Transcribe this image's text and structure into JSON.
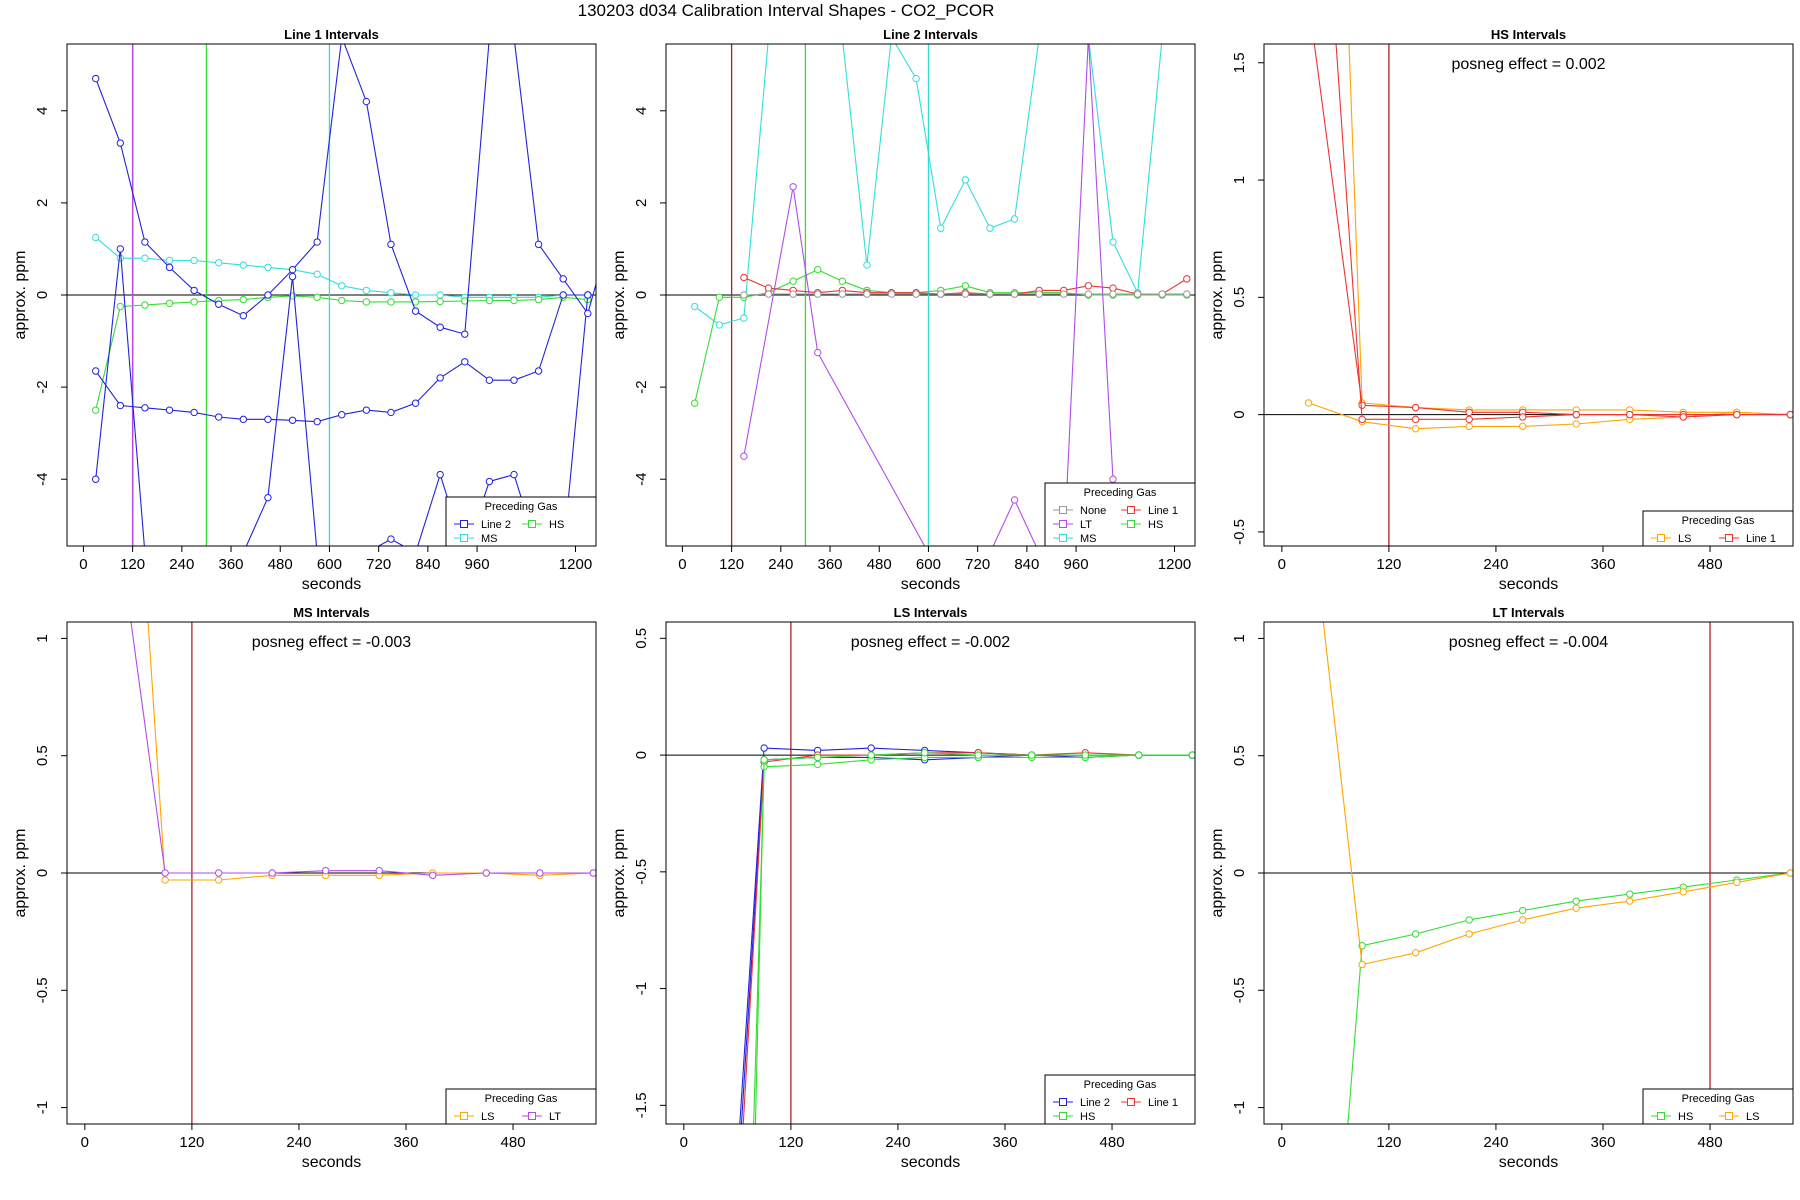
{
  "supertitle": "130203  d034   Calibration Interval Shapes - CO2_PCOR",
  "colors": {
    "Line 2": "#2222dd",
    "Line 1": "#ee3333",
    "HS": "#33dd33",
    "MS": "#33dddd",
    "LS": "#ffa500",
    "LT": "#b24be8",
    "None": "#999999",
    "zero": "#000000",
    "marker": "#b22222"
  },
  "chart_data": [
    {
      "type": "line",
      "title": "Line 1 Intervals",
      "xlabel": "seconds",
      "ylabel": "approx. ppm",
      "xlim": [
        -40,
        1250
      ],
      "ylim": [
        -5.45,
        5.45
      ],
      "xticks": [
        0,
        120,
        240,
        360,
        480,
        600,
        720,
        840,
        960,
        1200
      ],
      "yticks": [
        -4,
        -2,
        0,
        2,
        4
      ],
      "vlines": [
        {
          "x": 120,
          "color": "Line 2"
        },
        {
          "x": 120,
          "color": "LT"
        },
        {
          "x": 300,
          "color": "HS"
        },
        {
          "x": 600,
          "color": "MS"
        }
      ],
      "legend": {
        "title": "Preceding Gas",
        "position": "bottom-right",
        "entries": [
          "Line 2",
          "HS",
          "MS"
        ]
      },
      "annotation": "",
      "series": [
        {
          "name": "MS",
          "color": "MS",
          "x": [
            30,
            90,
            150,
            210,
            270,
            330,
            390,
            450,
            510,
            570,
            630,
            690,
            750,
            810,
            870,
            930,
            990,
            1050,
            1110,
            1170,
            1230
          ],
          "y": [
            1.25,
            0.8,
            0.8,
            0.75,
            0.75,
            0.7,
            0.65,
            0.6,
            0.55,
            0.45,
            0.2,
            0.1,
            0.05,
            0.0,
            0.0,
            -0.05,
            -0.05,
            -0.05,
            -0.05,
            0.0,
            0.0
          ]
        },
        {
          "name": "HS",
          "color": "HS",
          "x": [
            30,
            90,
            150,
            210,
            270,
            330,
            390,
            450,
            510,
            570,
            630,
            690,
            750,
            810,
            870,
            930,
            990,
            1050,
            1110,
            1170,
            1230
          ],
          "y": [
            -2.5,
            -0.25,
            -0.22,
            -0.18,
            -0.15,
            -0.12,
            -0.1,
            -0.05,
            -0.02,
            -0.05,
            -0.12,
            -0.15,
            -0.15,
            -0.15,
            -0.14,
            -0.13,
            -0.12,
            -0.12,
            -0.1,
            -0.05,
            -0.1
          ]
        },
        {
          "name": "Line 2",
          "color": "Line 2",
          "x": [
            30,
            90,
            150,
            210,
            270,
            330,
            390,
            450,
            510,
            570,
            630,
            690,
            750,
            810,
            870,
            930,
            990,
            1050,
            1110,
            1170,
            1230
          ],
          "y": [
            -4.0,
            1.0,
            -5.6,
            -5.6,
            -5.6,
            -5.6,
            -5.6,
            -4.4,
            0.4,
            -5.6,
            -5.6,
            -5.6,
            -5.3,
            -5.6,
            -3.9,
            -5.6,
            -4.05,
            -3.9,
            -5.6,
            -5.6,
            0.0
          ]
        },
        {
          "name": "Line 2",
          "color": "Line 2",
          "x": [
            30,
            90,
            150,
            210,
            270,
            330,
            390,
            450,
            510,
            570,
            630,
            690,
            750,
            810,
            870,
            930,
            990,
            1050,
            1110,
            1170,
            1230
          ],
          "y": [
            -1.65,
            -2.4,
            -2.45,
            -2.5,
            -2.55,
            -2.65,
            -2.7,
            -2.7,
            -2.72,
            -2.75,
            -2.6,
            -2.5,
            -2.55,
            -2.35,
            -1.8,
            -1.45,
            -1.85,
            -1.85,
            -1.65,
            0.0,
            0.0
          ]
        },
        {
          "name": "Line 2",
          "color": "Line 2",
          "x": [
            30,
            90,
            150,
            210,
            270,
            330,
            390,
            450,
            510,
            570,
            630,
            690,
            750,
            810,
            870,
            930,
            990,
            1050,
            1110,
            1170,
            1230,
            1260
          ],
          "y": [
            4.7,
            3.3,
            1.15,
            0.6,
            0.1,
            -0.2,
            -0.45,
            0.0,
            0.55,
            1.15,
            5.6,
            4.2,
            1.1,
            -0.35,
            -0.7,
            -0.85,
            5.6,
            5.6,
            1.1,
            0.35,
            -0.4,
            0.55
          ]
        }
      ]
    },
    {
      "type": "line",
      "title": "Line 2 Intervals",
      "xlabel": "seconds",
      "ylabel": "approx. ppm",
      "xlim": [
        -40,
        1250
      ],
      "ylim": [
        -5.45,
        5.45
      ],
      "xticks": [
        0,
        120,
        240,
        360,
        480,
        600,
        720,
        840,
        960,
        1200
      ],
      "yticks": [
        -4,
        -2,
        0,
        2,
        4
      ],
      "vlines": [
        {
          "x": 120,
          "color": "marker"
        },
        {
          "x": 300,
          "color": "HS"
        },
        {
          "x": 600,
          "color": "MS"
        }
      ],
      "legend": {
        "title": "Preceding Gas",
        "position": "bottom-right",
        "entries": [
          "None",
          "Line 1",
          "LT",
          "HS",
          "MS"
        ]
      },
      "annotation": "",
      "series": [
        {
          "name": "MS",
          "color": "MS",
          "x": [
            30,
            90,
            150,
            210,
            270,
            330,
            390,
            450,
            510,
            570,
            630,
            690,
            750,
            810,
            870,
            930,
            990,
            1050,
            1110,
            1170,
            1230
          ],
          "y": [
            -0.25,
            -0.65,
            -0.5,
            5.6,
            5.6,
            5.6,
            5.6,
            0.65,
            5.6,
            4.7,
            1.45,
            2.5,
            1.45,
            1.65,
            5.6,
            5.6,
            5.6,
            1.15,
            0.05,
            5.6,
            5.6
          ]
        },
        {
          "name": "HS",
          "color": "HS",
          "x": [
            30,
            90,
            150,
            210,
            270,
            330,
            390,
            450,
            510,
            570,
            630,
            690,
            750,
            810,
            870,
            930,
            990,
            1050,
            1110,
            1170,
            1230
          ],
          "y": [
            -2.35,
            -0.05,
            -0.05,
            0.05,
            0.3,
            0.55,
            0.3,
            0.1,
            0.05,
            0.05,
            0.1,
            0.2,
            0.05,
            0.05,
            0.05,
            0.05,
            0.0,
            0.0,
            0.0,
            0.0,
            0.0
          ]
        },
        {
          "name": "Line 1",
          "color": "Line 1",
          "x": [
            150,
            210,
            270,
            330,
            390,
            450,
            510,
            570,
            630,
            690,
            750,
            810,
            870,
            930,
            990,
            1050,
            1110,
            1170,
            1230
          ],
          "y": [
            0.38,
            0.15,
            0.1,
            0.05,
            0.1,
            0.05,
            0.05,
            0.05,
            0.02,
            0.05,
            0.02,
            0.02,
            0.1,
            0.1,
            0.2,
            0.15,
            0.02,
            0.02,
            0.35
          ]
        },
        {
          "name": "LT",
          "color": "LT",
          "x": [
            150,
            270,
            330,
            600,
            630,
            690,
            750,
            810,
            870,
            930,
            990,
            1050,
            1110
          ],
          "y": [
            -3.5,
            2.35,
            -1.25,
            -5.6,
            -5.6,
            -5.6,
            -5.6,
            -4.45,
            -5.6,
            -5.6,
            5.6,
            -4.0,
            -5.6
          ]
        },
        {
          "name": "None",
          "color": "None",
          "x": [
            150,
            210,
            270,
            330,
            390,
            450,
            510,
            570,
            630,
            690,
            750,
            810,
            870,
            930,
            990,
            1050,
            1110,
            1170,
            1230
          ],
          "y": [
            0.0,
            0.02,
            0.02,
            0.02,
            0.02,
            0.02,
            0.02,
            0.02,
            0.02,
            0.02,
            0.02,
            0.02,
            0.02,
            0.02,
            0.02,
            0.02,
            0.02,
            0.02,
            0.02
          ]
        }
      ]
    },
    {
      "type": "line",
      "title": "HS Intervals",
      "xlabel": "seconds",
      "ylabel": "approx. ppm",
      "xlim": [
        -20,
        573
      ],
      "ylim": [
        -0.56,
        1.58
      ],
      "xticks": [
        0,
        120,
        240,
        360,
        480
      ],
      "yticks": [
        -0.5,
        0.0,
        0.5,
        1.0,
        1.5
      ],
      "vlines": [
        {
          "x": 120,
          "color": "marker"
        }
      ],
      "legend": {
        "title": "Preceding Gas",
        "position": "bottom-right",
        "entries": [
          "LS",
          "Line 1"
        ]
      },
      "annotation": "posneg effect = 0.002",
      "series": [
        {
          "name": "LS",
          "color": "LS",
          "x": [
            30,
            90,
            150,
            210,
            270,
            330,
            390,
            450,
            510,
            570
          ],
          "y": [
            0.05,
            -0.03,
            -0.06,
            -0.05,
            -0.05,
            -0.04,
            -0.02,
            -0.01,
            0.01,
            0.0
          ]
        },
        {
          "name": "LS",
          "color": "LS",
          "x": [
            75,
            90,
            150,
            210,
            270,
            330,
            390,
            450,
            510,
            570
          ],
          "y": [
            1.62,
            0.05,
            0.03,
            0.02,
            0.02,
            0.02,
            0.02,
            0.01,
            0.01,
            0.0
          ]
        },
        {
          "name": "Line 1",
          "color": "Line 1",
          "x": [
            35,
            90,
            150,
            210,
            270,
            330,
            390,
            450,
            510,
            570
          ],
          "y": [
            1.62,
            0.04,
            0.03,
            0.01,
            0.01,
            0.0,
            0.0,
            0.0,
            0.0,
            0.0
          ]
        },
        {
          "name": "Line 1",
          "color": "Line 1",
          "x": [
            60,
            90,
            150,
            210,
            270,
            330,
            390,
            450,
            510,
            570
          ],
          "y": [
            1.62,
            -0.02,
            -0.02,
            -0.02,
            -0.01,
            0.0,
            0.0,
            -0.01,
            0.0,
            0.0
          ]
        }
      ]
    },
    {
      "type": "line",
      "title": "MS Intervals",
      "xlabel": "seconds",
      "ylabel": "approx. ppm",
      "xlim": [
        -20,
        573
      ],
      "ylim": [
        -1.07,
        1.07
      ],
      "xticks": [
        0,
        120,
        240,
        360,
        480
      ],
      "yticks": [
        -1.0,
        -0.5,
        0.0,
        0.5,
        1.0
      ],
      "vlines": [
        {
          "x": 120,
          "color": "marker"
        }
      ],
      "legend": {
        "title": "Preceding Gas",
        "position": "bottom-right",
        "entries": [
          "LS",
          "LT"
        ]
      },
      "annotation": "posneg effect = -0.003",
      "series": [
        {
          "name": "LS",
          "color": "LS",
          "x": [
            70,
            90,
            150,
            210,
            270,
            330,
            390,
            450,
            510,
            570
          ],
          "y": [
            1.12,
            -0.03,
            -0.03,
            -0.01,
            -0.01,
            -0.01,
            0.0,
            0.0,
            -0.01,
            0.0
          ]
        },
        {
          "name": "LT",
          "color": "LT",
          "x": [
            50,
            90,
            150,
            210,
            270,
            330,
            390,
            450,
            510,
            570
          ],
          "y": [
            1.12,
            0.0,
            0.0,
            0.0,
            0.01,
            0.01,
            -0.01,
            0.0,
            0.0,
            0.0
          ]
        }
      ]
    },
    {
      "type": "line",
      "title": "LS Intervals",
      "xlabel": "seconds",
      "ylabel": "approx. ppm",
      "xlim": [
        -20,
        573
      ],
      "ylim": [
        -1.58,
        0.57
      ],
      "xticks": [
        0,
        120,
        240,
        360,
        480
      ],
      "yticks": [
        -1.5,
        -1.0,
        -0.5,
        0.0,
        0.5
      ],
      "vlines": [
        {
          "x": 120,
          "color": "marker"
        }
      ],
      "legend": {
        "title": "Preceding Gas",
        "position": "bottom-right",
        "entries": [
          "Line 2",
          "Line 1",
          "HS"
        ]
      },
      "annotation": "posneg effect = -0.002",
      "series": [
        {
          "name": "Line 2",
          "color": "Line 2",
          "x": [
            62,
            90,
            150,
            210,
            270,
            330,
            390,
            450,
            510,
            570
          ],
          "y": [
            -1.62,
            0.03,
            0.02,
            0.03,
            0.02,
            0.01,
            0.0,
            0.0,
            0.0,
            0.0
          ]
        },
        {
          "name": "Line 2",
          "color": "Line 2",
          "x": [
            64,
            90,
            150,
            210,
            270,
            330,
            390,
            450,
            510,
            570
          ],
          "y": [
            -1.62,
            -0.02,
            -0.01,
            -0.01,
            -0.02,
            -0.01,
            0.0,
            -0.01,
            0.0,
            0.0
          ]
        },
        {
          "name": "Line 1",
          "color": "Line 1",
          "x": [
            66,
            90,
            150,
            210,
            270,
            330,
            390,
            450,
            510,
            570
          ],
          "y": [
            -1.62,
            -0.03,
            0.0,
            0.0,
            0.01,
            0.01,
            0.0,
            0.01,
            0.0,
            0.0
          ]
        },
        {
          "name": "HS",
          "color": "HS",
          "x": [
            78,
            90,
            150,
            210,
            270,
            330,
            390,
            450,
            510,
            570
          ],
          "y": [
            -1.62,
            -0.05,
            -0.04,
            -0.02,
            -0.01,
            -0.01,
            -0.01,
            -0.01,
            0.0,
            0.0
          ]
        },
        {
          "name": "HS",
          "color": "HS",
          "x": [
            80,
            90,
            150,
            210,
            270,
            330,
            390,
            450,
            510,
            570
          ],
          "y": [
            -1.62,
            -0.02,
            -0.01,
            0.0,
            0.01,
            0.0,
            0.0,
            0.0,
            0.0,
            0.0
          ]
        }
      ]
    },
    {
      "type": "line",
      "title": "LT Intervals",
      "xlabel": "seconds",
      "ylabel": "approx. ppm",
      "xlim": [
        -20,
        573
      ],
      "ylim": [
        -1.07,
        1.07
      ],
      "xticks": [
        0,
        120,
        240,
        360,
        480
      ],
      "yticks": [
        -1.0,
        -0.5,
        0.0,
        0.5,
        1.0
      ],
      "vlines": [
        {
          "x": 480,
          "color": "marker"
        }
      ],
      "legend": {
        "title": "Preceding Gas",
        "position": "bottom-right",
        "entries": [
          "HS",
          "LS"
        ]
      },
      "annotation": "posneg effect = -0.004",
      "series": [
        {
          "name": "HS",
          "color": "HS",
          "x": [
            73,
            90,
            150,
            210,
            270,
            330,
            390,
            450,
            510,
            570
          ],
          "y": [
            -1.12,
            -0.31,
            -0.26,
            -0.2,
            -0.16,
            -0.12,
            -0.09,
            -0.06,
            -0.03,
            0.0
          ]
        },
        {
          "name": "LS",
          "color": "LS",
          "x": [
            45,
            90,
            150,
            210,
            270,
            330,
            390,
            450,
            510,
            570
          ],
          "y": [
            1.12,
            -0.39,
            -0.34,
            -0.26,
            -0.2,
            -0.15,
            -0.12,
            -0.08,
            -0.04,
            0.0
          ]
        }
      ]
    }
  ]
}
